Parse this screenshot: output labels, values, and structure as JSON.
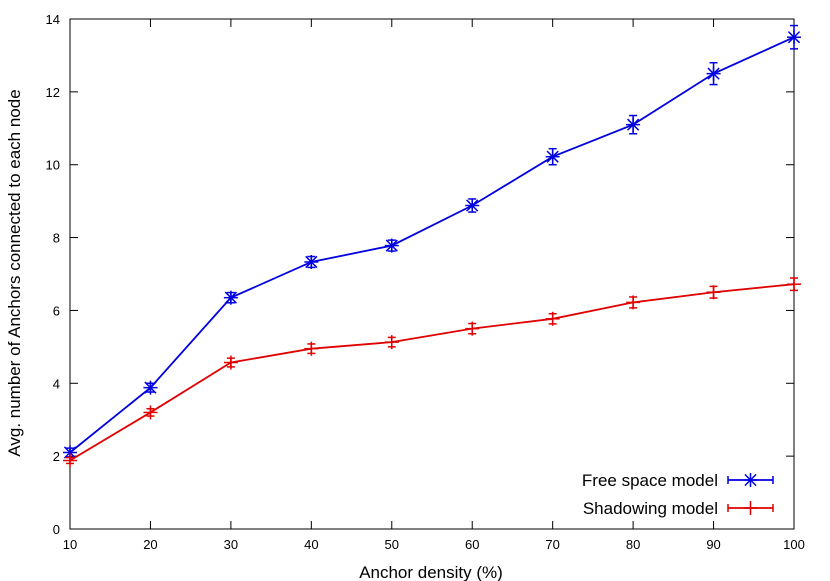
{
  "chart_data": {
    "type": "line",
    "xlabel": "Anchor density (%)",
    "ylabel": "Avg. number of Anchors connected to each node",
    "x": [
      10,
      20,
      30,
      40,
      50,
      60,
      70,
      80,
      90,
      100
    ],
    "xticks": [
      10,
      20,
      30,
      40,
      50,
      60,
      70,
      80,
      90,
      100
    ],
    "yticks": [
      0,
      2,
      4,
      6,
      8,
      10,
      12,
      14
    ],
    "xlim": [
      10,
      100
    ],
    "ylim": [
      0,
      14
    ],
    "grid": false,
    "legend_position": "bottom-right",
    "series": [
      {
        "name": "Free space model",
        "color": "#0000e0",
        "marker": "asterisk",
        "values": [
          2.1,
          3.88,
          6.35,
          7.33,
          7.78,
          8.88,
          10.22,
          11.1,
          12.5,
          13.5
        ],
        "errors": [
          0.12,
          0.12,
          0.14,
          0.15,
          0.15,
          0.18,
          0.22,
          0.25,
          0.3,
          0.32
        ]
      },
      {
        "name": "Shadowing model",
        "color": "#e00000",
        "marker": "plus",
        "values": [
          1.88,
          3.2,
          4.57,
          4.95,
          5.13,
          5.5,
          5.77,
          6.22,
          6.5,
          6.72
        ],
        "errors": [
          0.08,
          0.1,
          0.12,
          0.13,
          0.13,
          0.14,
          0.14,
          0.15,
          0.16,
          0.17
        ]
      }
    ]
  }
}
